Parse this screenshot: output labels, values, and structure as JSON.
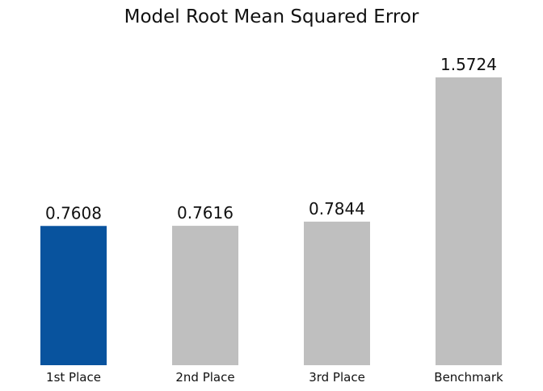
{
  "chart_data": {
    "type": "bar",
    "title": "Model Root Mean Squared Error",
    "xlabel": "",
    "ylabel": "",
    "categories": [
      "1st Place",
      "2nd Place",
      "3rd Place",
      "Benchmark"
    ],
    "values": [
      0.7608,
      0.7616,
      0.7844,
      1.5724
    ],
    "value_labels": [
      "0.7608",
      "0.7616",
      "0.7844",
      "1.5724"
    ],
    "ylim": [
      0,
      1.65
    ],
    "grid": false,
    "legend": false,
    "colors": {
      "highlight": "#08539e",
      "default": "#bfbfbf",
      "text": "#111111"
    },
    "highlight_index": 0
  }
}
